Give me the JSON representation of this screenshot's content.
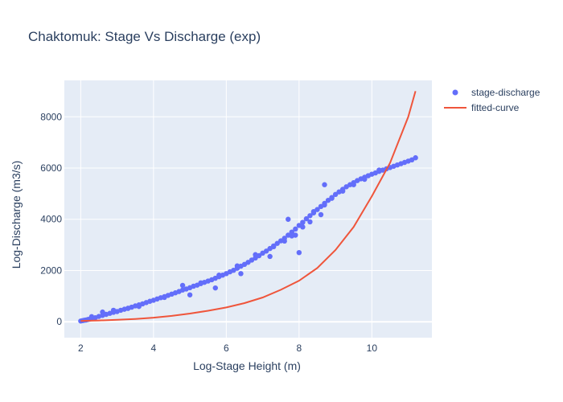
{
  "chart_data": {
    "type": "scatter",
    "title": "Chaktomuk: Stage Vs Discharge (exp)",
    "xlabel": "Log-Stage Height (m)",
    "ylabel": "Log-Discharge (m3/s)",
    "xlim": [
      1.55,
      11.65
    ],
    "ylim": [
      -620,
      9420
    ],
    "xticks": [
      2,
      4,
      6,
      8,
      10
    ],
    "yticks": [
      0,
      2000,
      4000,
      6000,
      8000
    ],
    "grid": true,
    "legend_position": "top-right",
    "colors": {
      "background": "#e5ecf6",
      "grid": "#ffffff",
      "scatter": "#636efa",
      "line": "#ef553b",
      "text": "#2a3f5f"
    },
    "series": [
      {
        "name": "stage-discharge",
        "mode": "markers",
        "x": [
          2.0,
          2.05,
          2.1,
          2.15,
          2.2,
          2.25,
          2.3,
          2.4,
          2.5,
          2.6,
          2.7,
          2.8,
          2.9,
          3.0,
          3.1,
          3.2,
          3.3,
          3.4,
          3.5,
          3.6,
          3.7,
          3.8,
          3.9,
          4.0,
          4.1,
          4.2,
          4.3,
          4.4,
          4.5,
          4.6,
          4.7,
          4.8,
          4.9,
          5.0,
          5.1,
          5.2,
          5.3,
          5.4,
          5.5,
          5.6,
          5.7,
          5.8,
          5.9,
          6.0,
          6.1,
          6.2,
          6.3,
          6.4,
          6.5,
          6.6,
          6.7,
          6.8,
          6.9,
          7.0,
          7.1,
          7.2,
          7.3,
          7.4,
          7.5,
          7.6,
          7.7,
          7.8,
          7.9,
          8.0,
          8.1,
          8.2,
          8.3,
          8.4,
          8.5,
          8.6,
          8.7,
          8.8,
          8.9,
          9.0,
          9.1,
          9.2,
          9.3,
          9.4,
          9.5,
          9.6,
          9.7,
          9.8,
          9.9,
          10.0,
          10.1,
          10.2,
          10.3,
          10.4,
          10.5,
          10.6,
          10.7,
          10.8,
          10.9,
          11.0,
          11.1,
          11.2,
          2.3,
          2.6,
          2.9,
          3.3,
          3.6,
          4.3,
          4.8,
          5.3,
          5.8,
          6.3,
          6.8,
          7.3,
          7.8,
          8.3,
          8.6,
          5.0,
          5.7,
          6.4,
          7.2,
          7.6,
          7.9,
          8.1,
          8.4,
          8.7,
          8.9,
          9.2,
          9.5,
          9.8,
          10.2,
          7.7,
          8.7,
          8.0
        ],
        "y": [
          30,
          45,
          60,
          70,
          90,
          105,
          120,
          160,
          210,
          250,
          290,
          330,
          370,
          400,
          450,
          490,
          530,
          570,
          620,
          660,
          700,
          750,
          800,
          840,
          890,
          940,
          980,
          1030,
          1080,
          1130,
          1180,
          1240,
          1280,
          1330,
          1390,
          1430,
          1490,
          1540,
          1590,
          1640,
          1700,
          1760,
          1820,
          1880,
          1950,
          2010,
          2090,
          2170,
          2240,
          2320,
          2410,
          2490,
          2580,
          2680,
          2760,
          2860,
          2960,
          3060,
          3160,
          3260,
          3380,
          3500,
          3620,
          3760,
          3880,
          4020,
          4140,
          4250,
          4380,
          4500,
          4620,
          4740,
          4850,
          4970,
          5070,
          5170,
          5270,
          5350,
          5430,
          5510,
          5580,
          5640,
          5700,
          5760,
          5810,
          5870,
          5920,
          5970,
          6020,
          6070,
          6120,
          6170,
          6220,
          6270,
          6320,
          6400,
          200,
          380,
          450,
          520,
          600,
          950,
          1420,
          1520,
          1820,
          2180,
          2620,
          2930,
          3350,
          3900,
          4180,
          1050,
          1320,
          1880,
          2550,
          3150,
          3380,
          3700,
          4300,
          4560,
          4820,
          5100,
          5350,
          5560,
          5920,
          4000,
          5350,
          2700
        ]
      },
      {
        "name": "fitted-curve",
        "mode": "lines",
        "x": [
          2.0,
          2.5,
          3.0,
          3.5,
          4.0,
          4.5,
          5.0,
          5.5,
          6.0,
          6.5,
          7.0,
          7.5,
          8.0,
          8.5,
          9.0,
          9.5,
          10.0,
          10.5,
          11.0,
          11.2
        ],
        "y": [
          35,
          52,
          76,
          110,
          160,
          230,
          320,
          430,
          560,
          730,
          950,
          1250,
          1600,
          2100,
          2800,
          3700,
          4900,
          6200,
          8000,
          9000
        ]
      }
    ]
  }
}
